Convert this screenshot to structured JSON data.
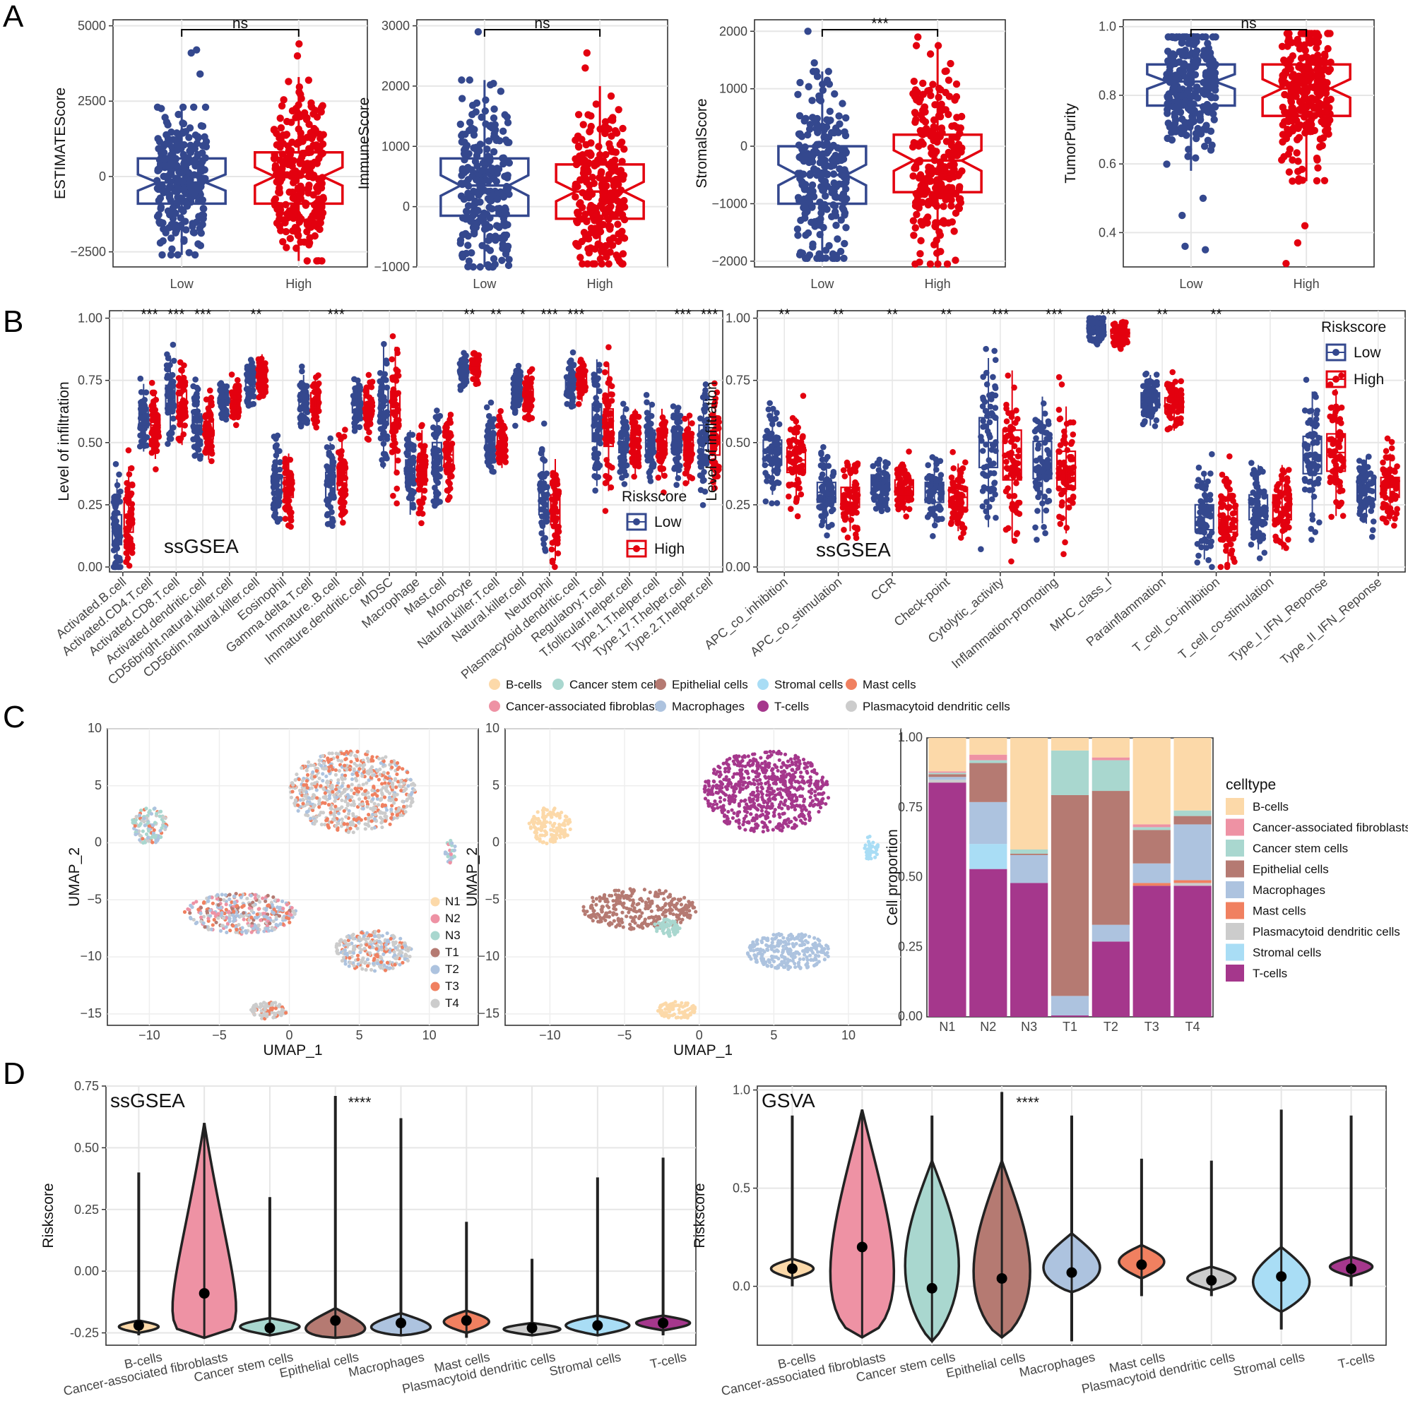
{
  "colors": {
    "low": "#34488e",
    "high": "#e3000f",
    "grid": "#e6e6e6",
    "frame": "#333333",
    "celltypes": {
      "B-cells": "#fcd9a9",
      "Cancer-associated fibroblasts": "#ee92a4",
      "Cancer stem cells": "#a9d7cf",
      "Epithelial cells": "#b57a72",
      "Macrophages": "#adc3df",
      "Mast cells": "#f08060",
      "Plasmacytoid dendritic cells": "#cccccc",
      "Stromal cells": "#a9ddf5",
      "T-cells": "#a5378c"
    },
    "samples": {
      "N1": "#fcd9a9",
      "N2": "#ee92a4",
      "N3": "#a9d7cf",
      "T1": "#b57a72",
      "T2": "#adc3df",
      "T3": "#f08060",
      "T4": "#cccccc"
    }
  },
  "panel_labels": {
    "A": "A",
    "B": "B",
    "C": "C",
    "D": "D"
  },
  "chart_data": [
    {
      "id": "A1",
      "type": "boxplot-jitter",
      "ylabel": "ESTIMATEScore",
      "categories": [
        "Low",
        "High"
      ],
      "ylim": [
        -3000,
        5200
      ],
      "yticks": [
        -2500,
        0,
        2500,
        5000
      ],
      "significance": "ns",
      "boxes": [
        {
          "group": "Low",
          "q1": -900,
          "median": -200,
          "q3": 600,
          "whisker_low": -2600,
          "whisker_high": 2300,
          "outliers": [
            3400,
            4200,
            4100
          ]
        },
        {
          "group": "High",
          "q1": -900,
          "median": 0,
          "q3": 800,
          "whisker_low": -2800,
          "whisker_high": 3300,
          "outliers": [
            4400,
            4000
          ]
        }
      ]
    },
    {
      "id": "A2",
      "type": "boxplot-jitter",
      "ylabel": "ImmuneScore",
      "categories": [
        "Low",
        "High"
      ],
      "ylim": [
        -1000,
        3100
      ],
      "yticks": [
        -1000,
        0,
        1000,
        2000,
        3000
      ],
      "significance": "ns",
      "boxes": [
        {
          "group": "Low",
          "q1": -150,
          "median": 350,
          "q3": 800,
          "whisker_low": -1000,
          "whisker_high": 2100,
          "outliers": [
            2900
          ]
        },
        {
          "group": "High",
          "q1": -200,
          "median": 250,
          "q3": 700,
          "whisker_low": -950,
          "whisker_high": 2000,
          "outliers": [
            2550,
            2300
          ]
        }
      ]
    },
    {
      "id": "A3",
      "type": "boxplot-jitter",
      "ylabel": "StromalScore",
      "categories": [
        "Low",
        "High"
      ],
      "ylim": [
        -2100,
        2200
      ],
      "yticks": [
        -2000,
        -1000,
        0,
        1000,
        2000
      ],
      "significance": "***",
      "boxes": [
        {
          "group": "Low",
          "q1": -1000,
          "median": -500,
          "q3": 0,
          "whisker_low": -1950,
          "whisker_high": 1300,
          "outliers": [
            2000,
            1450
          ]
        },
        {
          "group": "High",
          "q1": -800,
          "median": -250,
          "q3": 200,
          "whisker_low": -2050,
          "whisker_high": 1750,
          "outliers": [
            1900
          ]
        }
      ]
    },
    {
      "id": "A4",
      "type": "boxplot-jitter",
      "ylabel": "TumorPurity",
      "categories": [
        "Low",
        "High"
      ],
      "ylim": [
        0.3,
        1.02
      ],
      "yticks": [
        0.4,
        0.6,
        0.8,
        1.0
      ],
      "significance": "ns",
      "boxes": [
        {
          "group": "Low",
          "q1": 0.77,
          "median": 0.84,
          "q3": 0.89,
          "whisker_low": 0.58,
          "whisker_high": 0.97,
          "outliers": [
            0.45,
            0.36,
            0.35,
            0.5
          ]
        },
        {
          "group": "High",
          "q1": 0.74,
          "median": 0.82,
          "q3": 0.89,
          "whisker_low": 0.55,
          "whisker_high": 0.98,
          "outliers": [
            0.42,
            0.37,
            0.31
          ]
        }
      ]
    },
    {
      "id": "B1",
      "type": "paired-boxplot",
      "ylabel": "Level of infiltration",
      "ylim": [
        -0.02,
        1.03
      ],
      "yticks": [
        0.0,
        0.25,
        0.5,
        0.75,
        1.0
      ],
      "annotation": "ssGSEA",
      "legend_title": "Riskscore",
      "legend": [
        "Low",
        "High"
      ],
      "categories": [
        "Activated.B.cell",
        "Activated.CD4.T.cell",
        "Activated.CD8.T.cell",
        "Activated.dendritic.cell",
        "CD56bright.natural.killer.cell",
        "CD56dim.natural.killer.cell",
        "Eosinophil",
        "Gamma.delta.T.cell",
        "Immature..B.cell",
        "Immature.dendritic.cell",
        "MDSC",
        "Macrophage",
        "Mast.cell",
        "Monocyte",
        "Natural.killer.T.cell",
        "Natural.killer.cell",
        "Neutrophil",
        "Plasmacytoid.dendritic.cell",
        "Regulatory.T.cell",
        "T.follicular.helper.cell",
        "Type.1.T.helper.cell",
        "Type.17.T.helper.cell",
        "Type.2.T.helper.cell"
      ],
      "significance": [
        "",
        "***",
        "***",
        "***",
        "",
        "**",
        "",
        "",
        "***",
        "",
        "",
        "",
        "",
        "**",
        "**",
        "*",
        "***",
        "***",
        "",
        "",
        "",
        "***",
        "***"
      ],
      "low_median": [
        0.15,
        0.6,
        0.68,
        0.58,
        0.67,
        0.75,
        0.33,
        0.67,
        0.33,
        0.65,
        0.65,
        0.38,
        0.45,
        0.79,
        0.5,
        0.71,
        0.27,
        0.74,
        0.58,
        0.5,
        0.51,
        0.5,
        0.52
      ],
      "high_median": [
        0.2,
        0.57,
        0.66,
        0.55,
        0.67,
        0.77,
        0.32,
        0.67,
        0.36,
        0.65,
        0.63,
        0.38,
        0.45,
        0.8,
        0.5,
        0.69,
        0.23,
        0.75,
        0.56,
        0.5,
        0.5,
        0.47,
        0.5
      ],
      "low_iqr": [
        0.12,
        0.08,
        0.1,
        0.07,
        0.04,
        0.05,
        0.08,
        0.06,
        0.1,
        0.06,
        0.15,
        0.1,
        0.1,
        0.04,
        0.06,
        0.05,
        0.12,
        0.05,
        0.15,
        0.08,
        0.08,
        0.08,
        0.1
      ],
      "high_iqr": [
        0.12,
        0.08,
        0.1,
        0.07,
        0.04,
        0.05,
        0.08,
        0.06,
        0.1,
        0.06,
        0.15,
        0.1,
        0.1,
        0.04,
        0.06,
        0.05,
        0.12,
        0.05,
        0.15,
        0.08,
        0.08,
        0.08,
        0.1
      ]
    },
    {
      "id": "B2",
      "type": "paired-boxplot",
      "ylabel": "Level of infiltration",
      "ylim": [
        -0.02,
        1.03
      ],
      "yticks": [
        0.0,
        0.25,
        0.5,
        0.75,
        1.0
      ],
      "annotation": "ssGSEA",
      "legend_title": "Riskscore",
      "legend": [
        "Low",
        "High"
      ],
      "categories": [
        "APC_co_inhibition",
        "APC_co_stimulation",
        "CCR",
        "Check-point",
        "Cytolytic_activity",
        "Inflammation-promoting",
        "MHC_class_I",
        "Parainflammation",
        "T_cell_co-inhibition",
        "T_cell_co-stimulation",
        "Type_I_IFN_Reponse",
        "Type_II_IFN_Reponse"
      ],
      "significance": [
        "**",
        "**",
        "**",
        "**",
        "***",
        "***",
        "***",
        "**",
        "**",
        "",
        "",
        ""
      ],
      "low_median": [
        0.46,
        0.3,
        0.34,
        0.3,
        0.5,
        0.43,
        0.96,
        0.67,
        0.2,
        0.24,
        0.45,
        0.31
      ],
      "high_median": [
        0.43,
        0.28,
        0.32,
        0.28,
        0.45,
        0.39,
        0.94,
        0.65,
        0.19,
        0.24,
        0.46,
        0.32
      ],
      "low_iqr": [
        0.1,
        0.08,
        0.06,
        0.08,
        0.2,
        0.15,
        0.03,
        0.06,
        0.1,
        0.1,
        0.15,
        0.08
      ],
      "high_iqr": [
        0.1,
        0.08,
        0.06,
        0.08,
        0.2,
        0.15,
        0.03,
        0.06,
        0.1,
        0.1,
        0.15,
        0.08
      ]
    },
    {
      "id": "C1",
      "type": "scatter-umap",
      "xlabel": "UMAP_1",
      "ylabel": "UMAP_2",
      "xlim": [
        -13,
        13.5
      ],
      "ylim": [
        -16,
        10
      ],
      "xticks": [
        -10,
        -5,
        0,
        5,
        10
      ],
      "yticks": [
        -15,
        -10,
        -5,
        0,
        5,
        10
      ],
      "legend": [
        "N1",
        "N2",
        "N3",
        "T1",
        "T2",
        "T3",
        "T4"
      ]
    },
    {
      "id": "C2",
      "type": "scatter-umap",
      "xlabel": "UMAP_1",
      "ylabel": "UMAP_2",
      "xlim": [
        -13,
        13.5
      ],
      "ylim": [
        -16,
        10
      ],
      "xticks": [
        -10,
        -5,
        0,
        5,
        10
      ],
      "yticks": [
        -15,
        -10,
        -5,
        0,
        5,
        10
      ],
      "legend": [
        "B-cells",
        "Cancer stem cells",
        "Epithelial cells",
        "Stromal cells",
        "Mast cells",
        "Cancer-associated fibroblasts",
        "Macrophages",
        "T-cells",
        "Plasmacytoid dendritic cells"
      ]
    },
    {
      "id": "C3",
      "type": "stacked-bar",
      "ylabel": "Cell proportion",
      "legend_title": "celltype",
      "categories": [
        "N1",
        "N2",
        "N3",
        "T1",
        "T2",
        "T3",
        "T4"
      ],
      "yticks": [
        0.0,
        0.25,
        0.5,
        0.75,
        1.0
      ],
      "stack_order": [
        "T-cells",
        "Stromal cells",
        "Plasmacytoid dendritic cells",
        "Mast cells",
        "Macrophages",
        "Epithelial cells",
        "Cancer stem cells",
        "Cancer-associated fibroblasts",
        "B-cells"
      ],
      "legend_order": [
        "B-cells",
        "Cancer-associated fibroblasts",
        "Cancer stem cells",
        "Epithelial cells",
        "Macrophages",
        "Mast cells",
        "Plasmacytoid dendritic cells",
        "Stromal cells",
        "T-cells"
      ],
      "values": {
        "N1": {
          "T-cells": 0.84,
          "Stromal cells": 0.0,
          "Plasmacytoid dendritic cells": 0.01,
          "Mast cells": 0.0,
          "Macrophages": 0.01,
          "Epithelial cells": 0.01,
          "Cancer stem cells": 0.005,
          "Cancer-associated fibroblasts": 0.005,
          "B-cells": 0.12
        },
        "N2": {
          "T-cells": 0.53,
          "Stromal cells": 0.09,
          "Plasmacytoid dendritic cells": 0.0,
          "Mast cells": 0.0,
          "Macrophages": 0.15,
          "Epithelial cells": 0.14,
          "Cancer stem cells": 0.01,
          "Cancer-associated fibroblasts": 0.02,
          "B-cells": 0.06
        },
        "N3": {
          "T-cells": 0.48,
          "Stromal cells": 0.0,
          "Plasmacytoid dendritic cells": 0.0,
          "Mast cells": 0.0,
          "Macrophages": 0.1,
          "Epithelial cells": 0.005,
          "Cancer stem cells": 0.015,
          "Cancer-associated fibroblasts": 0.0,
          "B-cells": 0.4
        },
        "T1": {
          "T-cells": 0.005,
          "Stromal cells": 0.0,
          "Plasmacytoid dendritic cells": 0.0,
          "Mast cells": 0.0,
          "Macrophages": 0.07,
          "Epithelial cells": 0.72,
          "Cancer stem cells": 0.16,
          "Cancer-associated fibroblasts": 0.0,
          "B-cells": 0.045
        },
        "T2": {
          "T-cells": 0.27,
          "Stromal cells": 0.0,
          "Plasmacytoid dendritic cells": 0.0,
          "Mast cells": 0.0,
          "Macrophages": 0.06,
          "Epithelial cells": 0.48,
          "Cancer stem cells": 0.11,
          "Cancer-associated fibroblasts": 0.01,
          "B-cells": 0.07
        },
        "T3": {
          "T-cells": 0.47,
          "Stromal cells": 0.0,
          "Plasmacytoid dendritic cells": 0.0,
          "Mast cells": 0.01,
          "Macrophages": 0.07,
          "Epithelial cells": 0.12,
          "Cancer stem cells": 0.01,
          "Cancer-associated fibroblasts": 0.01,
          "B-cells": 0.31
        },
        "T4": {
          "T-cells": 0.47,
          "Stromal cells": 0.0,
          "Plasmacytoid dendritic cells": 0.01,
          "Mast cells": 0.01,
          "Macrophages": 0.2,
          "Epithelial cells": 0.03,
          "Cancer stem cells": 0.02,
          "Cancer-associated fibroblasts": 0.0,
          "B-cells": 0.26
        }
      }
    },
    {
      "id": "D1",
      "type": "violin",
      "ylabel": "Riskscore",
      "annotation": "ssGSEA",
      "significance": "****",
      "ylim": [
        -0.3,
        0.75
      ],
      "yticks": [
        -0.25,
        0.0,
        0.25,
        0.5,
        0.75
      ],
      "categories": [
        "B-cells",
        "Cancer-associated fibroblasts",
        "Cancer stem cells",
        "Epithelial cells",
        "Macrophages",
        "Mast cells",
        "Plasmacytoid dendritic cells",
        "Stromal cells",
        "T-cells"
      ],
      "means": [
        -0.22,
        -0.09,
        -0.23,
        -0.2,
        -0.21,
        -0.2,
        -0.23,
        -0.22,
        -0.21
      ],
      "max": [
        0.4,
        0.6,
        0.3,
        0.71,
        0.62,
        0.2,
        0.05,
        0.38,
        0.46
      ],
      "min": [
        -0.26,
        -0.27,
        -0.26,
        -0.27,
        -0.26,
        -0.27,
        -0.26,
        -0.26,
        -0.26
      ]
    },
    {
      "id": "D2",
      "type": "violin",
      "ylabel": "Riskscore",
      "annotation": "GSVA",
      "significance": "****",
      "ylim": [
        -0.3,
        1.02
      ],
      "yticks": [
        0.0,
        0.5,
        1.0
      ],
      "categories": [
        "B-cells",
        "Cancer-associated fibroblasts",
        "Cancer stem cells",
        "Epithelial cells",
        "Macrophages",
        "Mast cells",
        "Plasmacytoid dendritic cells",
        "Stromal cells",
        "T-cells"
      ],
      "means": [
        0.09,
        0.2,
        -0.01,
        0.04,
        0.07,
        0.11,
        0.03,
        0.05,
        0.09
      ],
      "max": [
        0.87,
        0.88,
        0.87,
        0.99,
        0.87,
        0.65,
        0.64,
        0.9,
        0.87
      ],
      "min": [
        0.0,
        -0.26,
        -0.28,
        -0.26,
        -0.28,
        -0.05,
        -0.05,
        -0.22,
        0.0
      ]
    }
  ]
}
